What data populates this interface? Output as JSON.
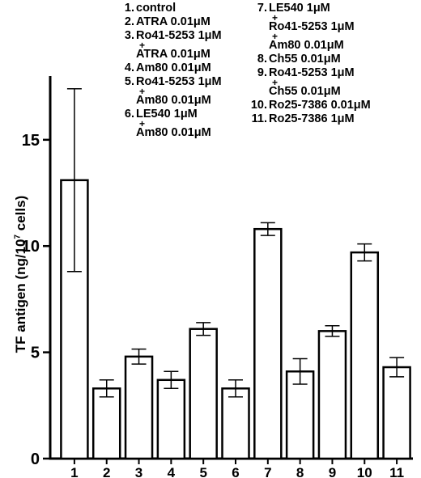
{
  "chart_data": {
    "type": "bar",
    "categories": [
      "1",
      "2",
      "3",
      "4",
      "5",
      "6",
      "7",
      "8",
      "9",
      "10",
      "11"
    ],
    "values": [
      13.1,
      3.3,
      4.8,
      3.7,
      6.1,
      3.3,
      10.8,
      4.1,
      6.0,
      9.7,
      4.3
    ],
    "errors": [
      4.3,
      0.4,
      0.35,
      0.4,
      0.3,
      0.4,
      0.3,
      0.6,
      0.25,
      0.4,
      0.45
    ],
    "ylabel_main": "TF antigen (ng/10",
    "ylabel_sup": "7",
    "ylabel_end": " cells)",
    "ylim": [
      0,
      18
    ],
    "yticks": [
      "0",
      "5",
      "10",
      "15"
    ],
    "ytick_values": [
      0,
      5,
      10,
      15
    ],
    "grid": false,
    "bar_fill": "#ffffff",
    "bar_stroke": "#000000"
  },
  "legend": {
    "left": [
      {
        "num": "1.",
        "lines": [
          "control"
        ]
      },
      {
        "num": "2.",
        "lines": [
          "ATRA 0.01μM"
        ]
      },
      {
        "num": "3.",
        "lines": [
          "Ro41-5253 1μM",
          "+",
          "ATRA 0.01μM"
        ]
      },
      {
        "num": "4.",
        "lines": [
          "Am80 0.01μM"
        ]
      },
      {
        "num": "5.",
        "lines": [
          "Ro41-5253 1μM",
          "+",
          "Am80 0.01μM"
        ]
      },
      {
        "num": "6.",
        "lines": [
          "LE540 1μM",
          "+",
          "Am80 0.01μM"
        ]
      }
    ],
    "right": [
      {
        "num": "7.",
        "lines": [
          "LE540 1μM",
          "+",
          "Ro41-5253 1μM",
          "+",
          "Am80 0.01μM"
        ]
      },
      {
        "num": "8.",
        "lines": [
          "Ch55 0.01μM"
        ]
      },
      {
        "num": "9.",
        "lines": [
          "Ro41-5253 1μM",
          "+",
          "Ch55 0.01μM"
        ]
      },
      {
        "num": "10.",
        "lines": [
          "Ro25-7386 0.01μM"
        ]
      },
      {
        "num": "11.",
        "lines": [
          "Ro25-7386 1μM"
        ]
      }
    ]
  }
}
